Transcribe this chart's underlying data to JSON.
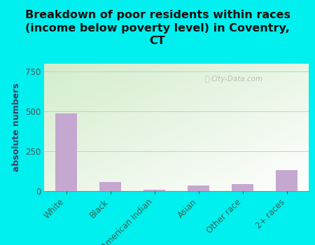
{
  "categories": [
    "White",
    "Black",
    "American Indian",
    "Asian",
    "Other race",
    "2+ races"
  ],
  "values": [
    490,
    55,
    10,
    35,
    42,
    130
  ],
  "bar_color": "#c4a8d0",
  "background_color": "#00efef",
  "plot_bg_color_left": "#d4edcc",
  "plot_bg_color_right": "#f5fbf0",
  "title": "Breakdown of poor residents within races\n(income below poverty level) in Coventry,\nCT",
  "ylabel": "absolute numbers",
  "ylim": [
    0,
    800
  ],
  "yticks": [
    0,
    250,
    500,
    750
  ],
  "grid_color": "#cccccc",
  "title_fontsize": 11.5,
  "ylabel_fontsize": 9,
  "tick_fontsize": 8.5,
  "watermark": "City-Data.com",
  "watermark_color": "#aaaaaa",
  "xtick_color": "#336655",
  "ytick_color": "#555555"
}
